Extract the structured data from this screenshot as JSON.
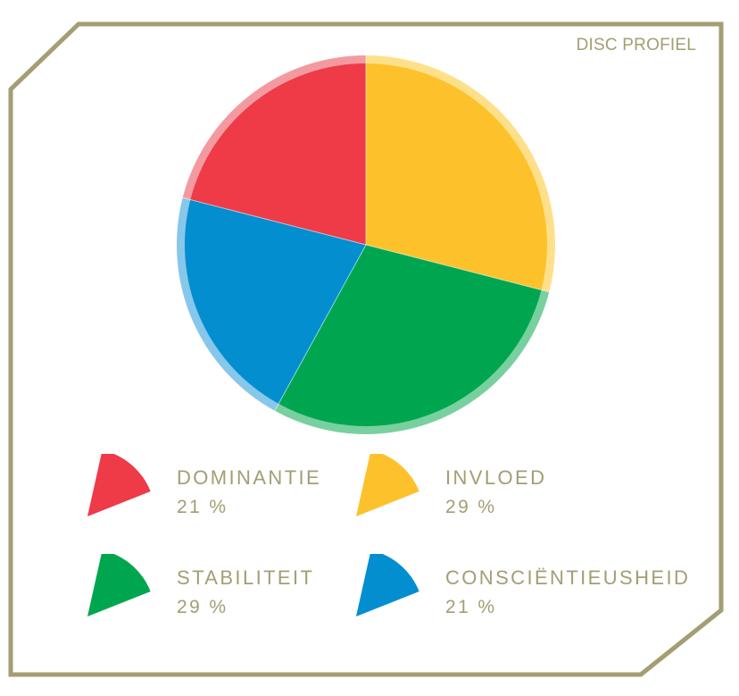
{
  "header": {
    "title": "DISC PROFIEL"
  },
  "chart_data": {
    "type": "pie",
    "title": "DISC PROFIEL",
    "categories": [
      "DOMINANTIE",
      "INVLOED",
      "STABILITEIT",
      "CONSCIËNTIEUSHEID"
    ],
    "values": [
      21,
      29,
      29,
      21
    ],
    "unit": "%",
    "legend_placement": "bottom",
    "colors": [
      "#ef3a48",
      "#fdc22b",
      "#00a64f",
      "#028ecf"
    ],
    "rim_colors": [
      "#f39aa0",
      "#ffe08a",
      "#79d09f",
      "#86c7ea"
    ]
  },
  "legend": [
    {
      "label": "DOMINANTIE",
      "value": "21 %"
    },
    {
      "label": "INVLOED",
      "value": "29 %"
    },
    {
      "label": "STABILITEIT",
      "value": "29 %"
    },
    {
      "label": "CONSCIËNTIEUSHEID",
      "value": "21 %"
    }
  ],
  "frame": {
    "border_color": "#a39e73"
  }
}
